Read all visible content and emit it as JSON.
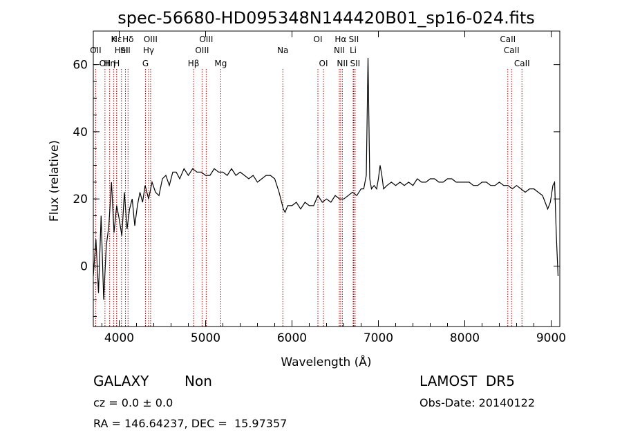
{
  "chart_data": {
    "type": "line",
    "title": "spec-56680-HD095348N144420B01_sp16-024.fits",
    "xlabel": "Wavelength (Å)",
    "ylabel": "Flux (relative)",
    "xlim": [
      3700,
      9100
    ],
    "ylim": [
      -18,
      70
    ],
    "x_ticks": [
      4000,
      5000,
      6000,
      7000,
      8000,
      9000
    ],
    "y_ticks": [
      0,
      20,
      40,
      60
    ],
    "grid": false,
    "series": [
      {
        "x": [
          3700,
          3730,
          3760,
          3790,
          3820,
          3850,
          3880,
          3910,
          3940,
          3970,
          4000,
          4030,
          4060,
          4090,
          4120,
          4150,
          4180,
          4210,
          4240,
          4270,
          4300,
          4340,
          4380,
          4420,
          4460,
          4500,
          4540,
          4580,
          4620,
          4660,
          4700,
          4750,
          4800,
          4850,
          4900,
          4950,
          5000,
          5050,
          5100,
          5150,
          5200,
          5250,
          5300,
          5350,
          5400,
          5450,
          5500,
          5550,
          5600,
          5650,
          5700,
          5750,
          5800,
          5850,
          5880,
          5900,
          5920,
          5950,
          6000,
          6050,
          6100,
          6150,
          6200,
          6250,
          6300,
          6350,
          6400,
          6450,
          6500,
          6550,
          6600,
          6650,
          6700,
          6750,
          6800,
          6830,
          6860,
          6880,
          6900,
          6920,
          6950,
          6980,
          7000,
          7020,
          7040,
          7060,
          7100,
          7150,
          7200,
          7250,
          7300,
          7350,
          7400,
          7450,
          7500,
          7550,
          7600,
          7650,
          7700,
          7750,
          7800,
          7850,
          7900,
          7950,
          8000,
          8050,
          8100,
          8150,
          8200,
          8250,
          8300,
          8350,
          8400,
          8450,
          8500,
          8550,
          8600,
          8650,
          8700,
          8750,
          8800,
          8850,
          8900,
          8930,
          8960,
          8990,
          9020,
          9040,
          9060,
          9080
        ],
        "y": [
          -3,
          8,
          -8,
          15,
          -10,
          6,
          12,
          25,
          10,
          18,
          14,
          9,
          22,
          11,
          17,
          20,
          12,
          18,
          22,
          19,
          24,
          20,
          25,
          22,
          21,
          26,
          27,
          24,
          28,
          28,
          26,
          29,
          27,
          29,
          28,
          28,
          27,
          27,
          29,
          28,
          28,
          27,
          29,
          27,
          28,
          27,
          26,
          27,
          25,
          26,
          27,
          27,
          26,
          22,
          19,
          17,
          16,
          18,
          18,
          19,
          17,
          19,
          18,
          18,
          21,
          19,
          20,
          19,
          21,
          20,
          20,
          21,
          22,
          21,
          23,
          23,
          27,
          62,
          26,
          23,
          24,
          23,
          26,
          30,
          27,
          23,
          24,
          25,
          24,
          25,
          24,
          25,
          24,
          26,
          25,
          25,
          26,
          26,
          25,
          25,
          26,
          26,
          25,
          25,
          25,
          25,
          24,
          24,
          25,
          25,
          24,
          24,
          25,
          24,
          24,
          23,
          24,
          23,
          22,
          23,
          23,
          22,
          21,
          19,
          17,
          19,
          24,
          25,
          9,
          -3
        ]
      }
    ],
    "line_markers": [
      {
        "x": 3727,
        "labels": [
          "OII"
        ],
        "row": 2
      },
      {
        "x": 3835,
        "labels": [
          "OII"
        ],
        "row": 3
      },
      {
        "x": 3889,
        "labels": [
          "Hη"
        ],
        "row": 3
      },
      {
        "x": 3935,
        "labels": [
          "K"
        ],
        "row": 1
      },
      {
        "x": 3970,
        "labels": [
          "H"
        ],
        "row": 3
      },
      {
        "x": 4102,
        "labels": [
          "Hδ"
        ],
        "row": 1
      },
      {
        "x": 3970,
        "labels": [
          "Hε"
        ],
        "row": 1
      },
      {
        "x": 4026,
        "labels": [
          "HeI"
        ],
        "row": 2
      },
      {
        "x": 4072,
        "labels": [
          "SII"
        ],
        "row": 2
      },
      {
        "x": 4304,
        "labels": [
          "G"
        ],
        "row": 3
      },
      {
        "x": 4340,
        "labels": [
          "Hγ"
        ],
        "row": 2
      },
      {
        "x": 4363,
        "labels": [
          "OIII"
        ],
        "row": 1
      },
      {
        "x": 4861,
        "labels": [
          "Hβ"
        ],
        "row": 3
      },
      {
        "x": 4959,
        "labels": [
          "OIII"
        ],
        "row": 2
      },
      {
        "x": 5007,
        "labels": [
          "OIII"
        ],
        "row": 1
      },
      {
        "x": 5175,
        "labels": [
          "Mg"
        ],
        "row": 3
      },
      {
        "x": 5894,
        "labels": [
          "Na"
        ],
        "row": 2
      },
      {
        "x": 6300,
        "labels": [
          "OI"
        ],
        "row": 1
      },
      {
        "x": 6364,
        "labels": [
          "OI"
        ],
        "row": 3
      },
      {
        "x": 6548,
        "labels": [
          "NII"
        ],
        "row": 2
      },
      {
        "x": 6563,
        "labels": [
          "Hα"
        ],
        "row": 1
      },
      {
        "x": 6583,
        "labels": [
          "NII"
        ],
        "row": 3
      },
      {
        "x": 6708,
        "labels": [
          "Li"
        ],
        "row": 2
      },
      {
        "x": 6716,
        "labels": [
          "SII"
        ],
        "row": 1
      },
      {
        "x": 6731,
        "labels": [
          "SII"
        ],
        "row": 3
      },
      {
        "x": 8498,
        "labels": [
          "CaII"
        ],
        "row": 1
      },
      {
        "x": 8542,
        "labels": [
          "CaII"
        ],
        "row": 2
      },
      {
        "x": 8662,
        "labels": [
          "CaII"
        ],
        "row": 3
      }
    ]
  },
  "info": {
    "class": "GALAXY",
    "subclass": "Non",
    "survey": "LAMOST  DR5",
    "cz": "cz = 0.0 ± 0.0",
    "obs_date": "Obs-Date: 20140122",
    "coords": "RA = 146.64237, DEC =  15.97357"
  }
}
